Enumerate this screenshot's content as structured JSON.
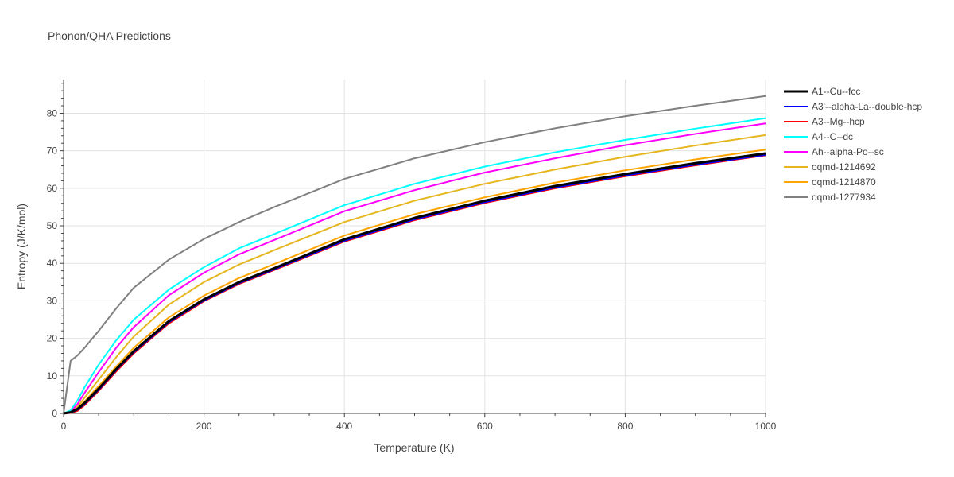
{
  "chart_data": {
    "type": "line",
    "title": "Phonon/QHA Predictions",
    "xlabel": "Temperature (K)",
    "ylabel": "Entropy (J/K/mol)",
    "xlim": [
      0,
      1000
    ],
    "ylim": [
      0,
      89
    ],
    "xticks": [
      0,
      200,
      400,
      600,
      800,
      1000
    ],
    "yticks": [
      0,
      10,
      20,
      30,
      40,
      50,
      60,
      70,
      80
    ],
    "grid": true,
    "legend_position": "top-right",
    "x": [
      0,
      10,
      20,
      30,
      50,
      75,
      100,
      150,
      200,
      250,
      300,
      400,
      500,
      600,
      700,
      800,
      900,
      1000
    ],
    "series": [
      {
        "name": "A1--Cu--fcc",
        "color": "#000000",
        "width": 3,
        "values": [
          0,
          0.3,
          1.2,
          2.8,
          6.6,
          11.8,
          16.6,
          24.6,
          30.4,
          35.0,
          38.7,
          46.4,
          52.1,
          56.7,
          60.6,
          63.8,
          66.7,
          69.3
        ]
      },
      {
        "name": "A3'--alpha-La--double-hcp",
        "color": "#0000ff",
        "width": 2,
        "values": [
          0,
          0.2,
          1.0,
          2.5,
          6.3,
          11.5,
          16.3,
          24.3,
          30.1,
          34.7,
          38.4,
          46.0,
          51.7,
          56.3,
          60.2,
          63.4,
          66.3,
          68.9
        ]
      },
      {
        "name": "A3--Mg--hcp",
        "color": "#ff0000",
        "width": 2,
        "values": [
          0,
          0.1,
          0.7,
          2.2,
          6.0,
          11.2,
          16.0,
          24.0,
          29.9,
          34.5,
          38.2,
          45.8,
          51.5,
          56.1,
          60.0,
          63.2,
          66.1,
          68.8
        ]
      },
      {
        "name": "A4--C--dc",
        "color": "#00ffff",
        "width": 2,
        "values": [
          0,
          0.8,
          3.5,
          7.0,
          13.0,
          19.5,
          25.0,
          33.0,
          39.0,
          44.0,
          47.8,
          55.5,
          61.2,
          65.8,
          69.6,
          72.9,
          75.9,
          78.7
        ]
      },
      {
        "name": "Ah--alpha-Po--sc",
        "color": "#ff00ff",
        "width": 2,
        "values": [
          0,
          0.5,
          2.5,
          5.5,
          11.0,
          17.5,
          23.0,
          31.5,
          37.5,
          42.4,
          46.2,
          53.9,
          59.5,
          64.2,
          68.0,
          71.5,
          74.5,
          77.3
        ]
      },
      {
        "name": "oqmd-1214692",
        "color": "#e5b61e",
        "width": 2,
        "values": [
          0,
          0.4,
          1.8,
          4.2,
          9.0,
          15.0,
          20.5,
          29.0,
          35.0,
          39.7,
          43.5,
          51.0,
          56.7,
          61.2,
          65.0,
          68.4,
          71.4,
          74.2
        ]
      },
      {
        "name": "oqmd-1214870",
        "color": "#ffa500",
        "width": 2,
        "values": [
          0,
          0.3,
          1.4,
          3.2,
          7.3,
          12.5,
          17.5,
          25.6,
          31.4,
          36.1,
          39.8,
          47.4,
          53.1,
          57.6,
          61.5,
          64.8,
          67.7,
          70.3
        ]
      },
      {
        "name": "oqmd-1277934",
        "color": "#808080",
        "width": 2,
        "values": [
          0,
          14.0,
          15.5,
          17.5,
          22.0,
          28.0,
          33.5,
          41.0,
          46.5,
          51.0,
          55.0,
          62.5,
          68.0,
          72.3,
          76.0,
          79.2,
          82.0,
          84.6
        ]
      }
    ]
  }
}
